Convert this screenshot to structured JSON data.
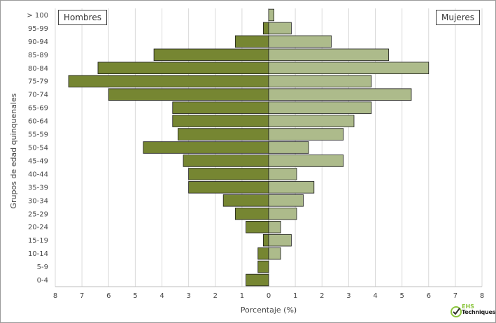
{
  "chart_data": {
    "type": "bar",
    "orientation": "horizontal",
    "subtype": "population-pyramid",
    "categories": [
      "0-4",
      "5-9",
      "10-14",
      "15-19",
      "20-24",
      "25-29",
      "30-34",
      "35-39",
      "40-44",
      "45-49",
      "50-54",
      "55-59",
      "60-64",
      "65-69",
      "70-74",
      "75-79",
      "80-84",
      "85-89",
      "90-94",
      "95-99",
      "> 100"
    ],
    "series": [
      {
        "name": "Hombres",
        "side": "left",
        "color": "#768632",
        "values": [
          0.85,
          0.4,
          0.4,
          0.2,
          0.85,
          1.25,
          1.7,
          3.0,
          3.0,
          3.2,
          4.7,
          3.4,
          3.6,
          3.6,
          6.0,
          7.5,
          6.4,
          4.3,
          1.25,
          0.2,
          0.0
        ]
      },
      {
        "name": "Mujeres",
        "side": "right",
        "color": "#adbb8b",
        "values": [
          0.0,
          0.0,
          0.45,
          0.85,
          0.45,
          1.05,
          1.3,
          1.7,
          1.05,
          2.8,
          1.5,
          2.8,
          3.2,
          3.85,
          5.35,
          3.85,
          6.0,
          4.5,
          2.35,
          0.85,
          0.2
        ]
      }
    ],
    "xlabel": "Porcentaje (%)",
    "ylabel": "Grupos de edad quinquenales",
    "xlim": [
      -8,
      8
    ],
    "xticks": [
      -8,
      -7,
      -6,
      -5,
      -4,
      -3,
      -2,
      -1,
      0,
      1,
      2,
      3,
      4,
      5,
      6,
      7,
      8
    ],
    "xtick_labels": [
      "8",
      "7",
      "6",
      "5",
      "4",
      "3",
      "2",
      "1",
      "0",
      "1",
      "2",
      "3",
      "4",
      "5",
      "6",
      "7",
      "8"
    ],
    "grid": "vertical",
    "legend": {
      "left_label": "Hombres",
      "right_label": "Mujeres",
      "placement": "top-left and top-right"
    }
  },
  "logo": {
    "brand_top": "EHS",
    "brand_bottom": "Techniques",
    "accent": "#8cc63f"
  }
}
